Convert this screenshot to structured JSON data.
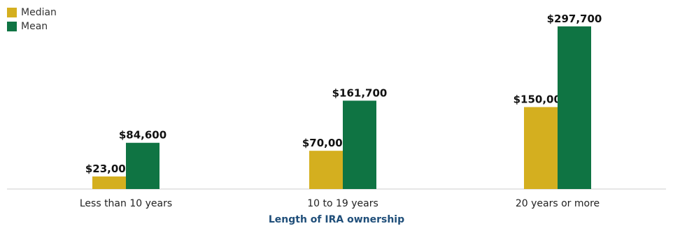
{
  "chart_data": {
    "type": "bar",
    "categories": [
      "Less than 10 years",
      "10 to 19 years",
      "20 years or more"
    ],
    "series": [
      {
        "name": "Median",
        "color": "#d4af1f",
        "values": [
          23000,
          70000,
          150000
        ],
        "labels": [
          "$23,000",
          "$70,000",
          "$150,000"
        ]
      },
      {
        "name": "Mean",
        "color": "#0f7443",
        "values": [
          84600,
          161700,
          297700
        ],
        "labels": [
          "$84,600",
          "$161,700",
          "$297,700"
        ]
      }
    ],
    "title": "",
    "xlabel": "Length of IRA ownership",
    "ylabel": "",
    "ylim": [
      0,
      300000
    ],
    "grid": false,
    "legend_position": "top-left",
    "axis_color": "#cccccc"
  }
}
